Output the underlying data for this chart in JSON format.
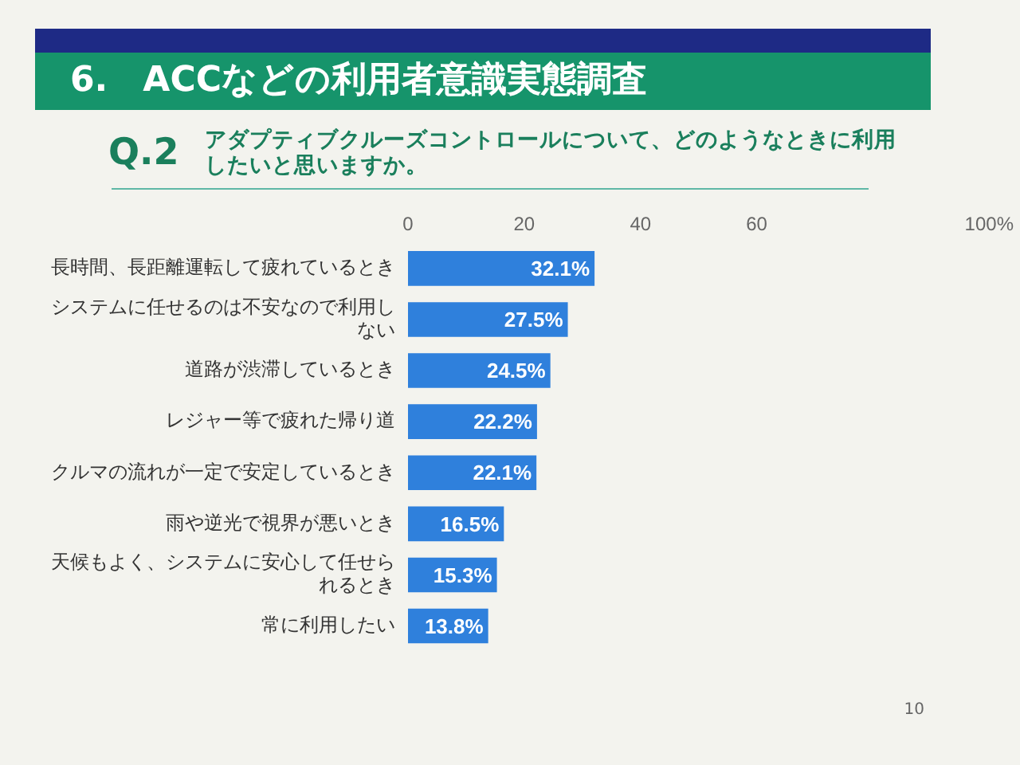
{
  "chart_data": {
    "type": "bar",
    "orientation": "horizontal",
    "title": "6.　ACCなどの利用者意識実態調査",
    "subtitle": "Q.2　アダプティブクルーズコントロールについて、どのようなときに利用したいと思いますか。",
    "categories": [
      "長時間、長距離運転して疲れているとき",
      "システムに任せるのは不安なので利用しない",
      "道路が渋滞しているとき",
      "レジャー等で疲れた帰り道",
      "クルマの流れが一定で安定しているとき",
      "雨や逆光で視界が悪いとき",
      "天候もよく、システムに安心して任せられるとき",
      "常に利用したい"
    ],
    "values": [
      32.1,
      27.5,
      24.5,
      22.2,
      22.1,
      16.5,
      15.3,
      13.8
    ],
    "value_labels": [
      "32.1%",
      "27.5%",
      "24.5%",
      "22.2%",
      "22.1%",
      "16.5%",
      "15.3%",
      "13.8%"
    ],
    "color": "#2f80dc",
    "xlim": [
      0,
      100
    ],
    "xticks": [
      0,
      20,
      40,
      60,
      {
        "value": 100,
        "label": "100%"
      }
    ],
    "annotations": [
      "10"
    ]
  }
}
